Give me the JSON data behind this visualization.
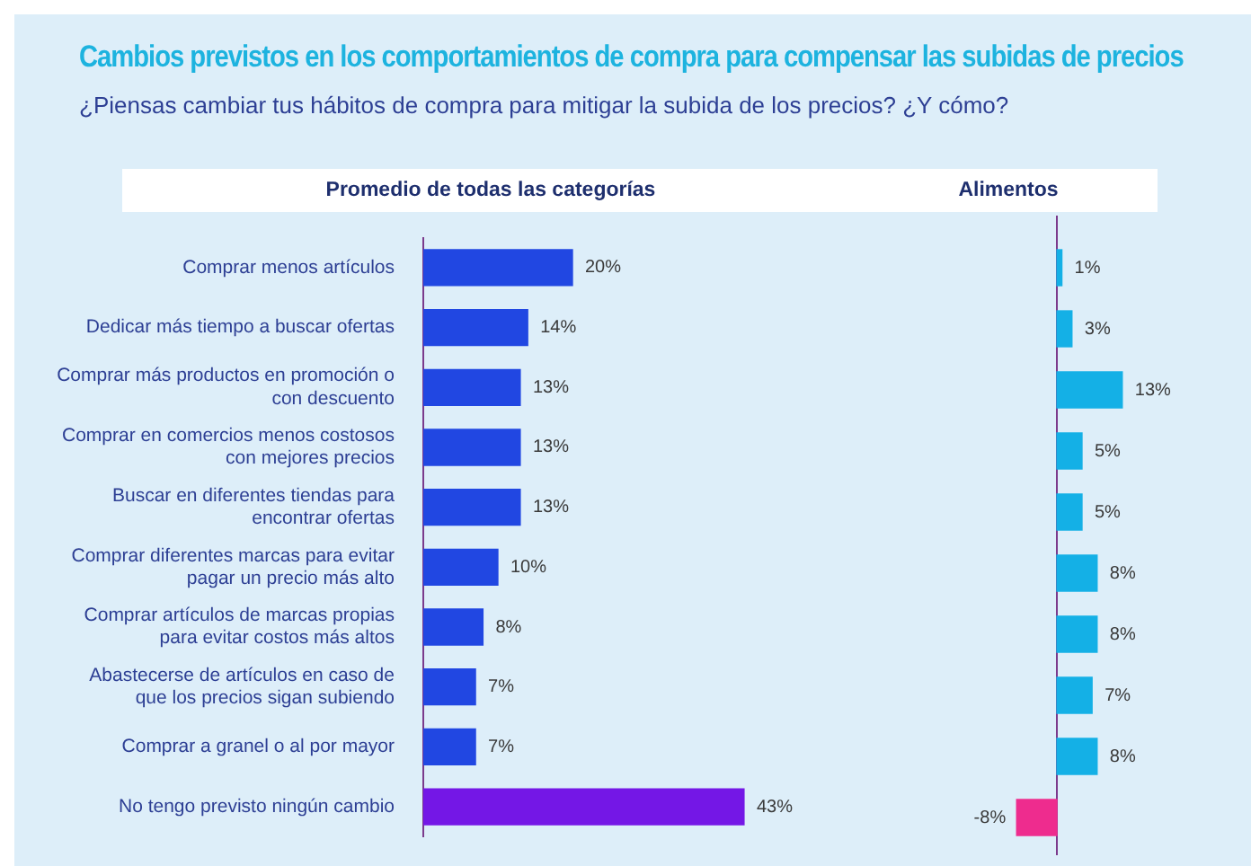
{
  "chart_data": [
    {
      "type": "other",
      "title": "Cambios previstos en los comportamientos de compra para compensar las subidas de precios",
      "subtitle": "¿Piensas cambiar tus hábitos de compra para mitigar la subida de los precios? ¿Y cómo?"
    },
    {
      "type": "bar",
      "orientation": "horizontal",
      "title": "Promedio de todas las categorías",
      "categories": [
        "Comprar menos artículos",
        "Dedicar más tiempo a buscar ofertas",
        "Comprar más productos en promoción o con descuento",
        "Comprar en comercios menos costosos con mejores precios",
        "Buscar en diferentes tiendas para encontrar ofertas",
        "Comprar diferentes marcas para evitar pagar un precio más alto",
        "Comprar artículos de marcas propias para evitar costos más altos",
        "Abastecerse de artículos en caso de que los precios sigan subiendo",
        "Comprar a granel o al por mayor",
        "No tengo previsto ningún cambio"
      ],
      "values": [
        20,
        14,
        13,
        13,
        13,
        10,
        8,
        7,
        7,
        43
      ],
      "colors": [
        "#2147e2",
        "#2147e2",
        "#2147e2",
        "#2147e2",
        "#2147e2",
        "#2147e2",
        "#2147e2",
        "#2147e2",
        "#2147e2",
        "#7417e6"
      ],
      "value_labels": [
        "20%",
        "14%",
        "13%",
        "13%",
        "13%",
        "10%",
        "8%",
        "7%",
        "7%",
        "43%"
      ]
    },
    {
      "type": "bar",
      "orientation": "horizontal",
      "title": "Alimentos",
      "categories": [
        null,
        null,
        null,
        null,
        null,
        null,
        null,
        null,
        null,
        null
      ],
      "values": [
        1,
        3,
        13,
        5,
        5,
        8,
        8,
        7,
        8,
        -8
      ],
      "colors": [
        "#14b0e6",
        "#14b0e6",
        "#14b0e6",
        "#14b0e6",
        "#14b0e6",
        "#14b0e6",
        "#14b0e6",
        "#14b0e6",
        "#14b0e6",
        "#ee2c8e"
      ],
      "value_labels": [
        "1%",
        "3%",
        "13%",
        "5%",
        "5%",
        "8%",
        "8%",
        "7%",
        "8%",
        "-8%"
      ],
      "ref_lines": [
        {
          "axis": "x",
          "value": 0,
          "color": "#7b3a8c"
        }
      ]
    }
  ]
}
